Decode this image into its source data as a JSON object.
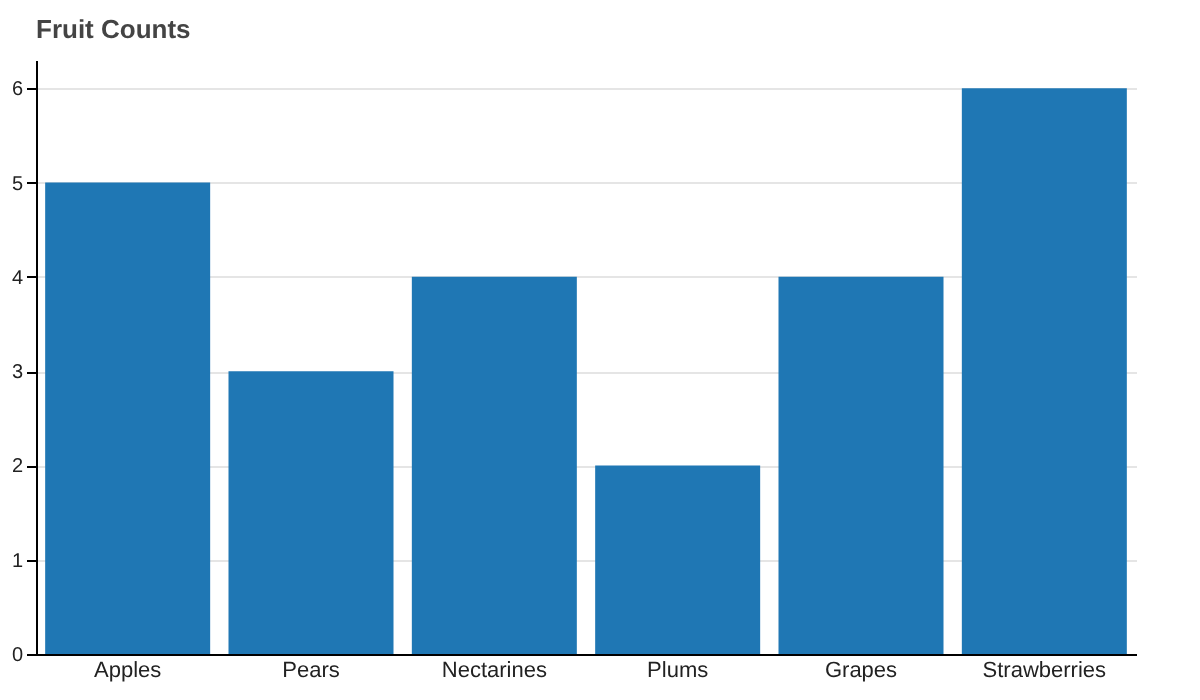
{
  "chart_data": {
    "type": "bar",
    "title": "Fruit Counts",
    "categories": [
      "Apples",
      "Pears",
      "Nectarines",
      "Plums",
      "Grapes",
      "Strawberries"
    ],
    "values": [
      5,
      3,
      4,
      2,
      4,
      6
    ],
    "color": "#1f77b4",
    "ylim": [
      0,
      6.3
    ],
    "yticks": [
      0,
      1,
      2,
      3,
      4,
      5,
      6
    ],
    "grid": "y"
  }
}
